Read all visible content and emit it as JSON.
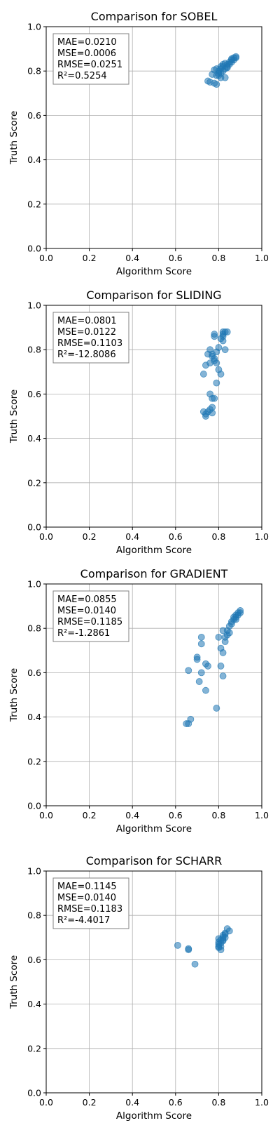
{
  "chart_data": [
    {
      "type": "scatter",
      "title": "Comparison for SOBEL",
      "xlabel": "Algorithm Score",
      "ylabel": "Truth Score",
      "xlim": [
        0,
        1
      ],
      "ylim": [
        0,
        1
      ],
      "xticks": [
        "0.0",
        "0.2",
        "0.4",
        "0.6",
        "0.8",
        "1.0"
      ],
      "yticks": [
        "0.0",
        "0.2",
        "0.4",
        "0.6",
        "0.8",
        "1.0"
      ],
      "grid": true,
      "marker_color": "#1f77b4",
      "stats": [
        "MAE=0.0210",
        "MSE=0.0006",
        "RMSE=0.0251",
        "R²=0.5254"
      ],
      "points": [
        [
          0.75,
          0.755
        ],
        [
          0.76,
          0.75
        ],
        [
          0.77,
          0.785
        ],
        [
          0.78,
          0.745
        ],
        [
          0.79,
          0.74
        ],
        [
          0.78,
          0.805
        ],
        [
          0.79,
          0.81
        ],
        [
          0.8,
          0.78
        ],
        [
          0.8,
          0.8
        ],
        [
          0.81,
          0.79
        ],
        [
          0.81,
          0.82
        ],
        [
          0.81,
          0.77
        ],
        [
          0.82,
          0.8
        ],
        [
          0.82,
          0.82
        ],
        [
          0.83,
          0.81
        ],
        [
          0.83,
          0.77
        ],
        [
          0.84,
          0.82
        ],
        [
          0.84,
          0.83
        ],
        [
          0.85,
          0.83
        ],
        [
          0.85,
          0.84
        ],
        [
          0.86,
          0.84
        ],
        [
          0.86,
          0.85
        ],
        [
          0.87,
          0.85
        ],
        [
          0.87,
          0.86
        ],
        [
          0.88,
          0.86
        ],
        [
          0.88,
          0.865
        ],
        [
          0.82,
          0.83
        ],
        [
          0.81,
          0.81
        ],
        [
          0.8,
          0.79
        ],
        [
          0.84,
          0.815
        ],
        [
          0.79,
          0.78
        ],
        [
          0.83,
          0.835
        ],
        [
          0.86,
          0.855
        ]
      ]
    },
    {
      "type": "scatter",
      "title": "Comparison for SLIDING",
      "xlabel": "Algorithm Score",
      "ylabel": "Truth Score",
      "xlim": [
        0,
        1
      ],
      "ylim": [
        0,
        1
      ],
      "xticks": [
        "0.0",
        "0.2",
        "0.4",
        "0.6",
        "0.8",
        "1.0"
      ],
      "yticks": [
        "0.0",
        "0.2",
        "0.4",
        "0.6",
        "0.8",
        "1.0"
      ],
      "grid": true,
      "marker_color": "#1f77b4",
      "stats": [
        "MAE=0.0801",
        "MSE=0.0122",
        "RMSE=0.1103",
        "R²=-12.8086"
      ],
      "points": [
        [
          0.73,
          0.52
        ],
        [
          0.74,
          0.5
        ],
        [
          0.74,
          0.51
        ],
        [
          0.75,
          0.52
        ],
        [
          0.76,
          0.53
        ],
        [
          0.77,
          0.515
        ],
        [
          0.77,
          0.54
        ],
        [
          0.78,
          0.58
        ],
        [
          0.76,
          0.6
        ],
        [
          0.77,
          0.58
        ],
        [
          0.73,
          0.69
        ],
        [
          0.74,
          0.73
        ],
        [
          0.75,
          0.78
        ],
        [
          0.76,
          0.8
        ],
        [
          0.76,
          0.74
        ],
        [
          0.77,
          0.78
        ],
        [
          0.78,
          0.75
        ],
        [
          0.78,
          0.76
        ],
        [
          0.79,
          0.74
        ],
        [
          0.79,
          0.65
        ],
        [
          0.8,
          0.71
        ],
        [
          0.81,
          0.69
        ],
        [
          0.8,
          0.81
        ],
        [
          0.81,
          0.85
        ],
        [
          0.82,
          0.86
        ],
        [
          0.82,
          0.87
        ],
        [
          0.82,
          0.88
        ],
        [
          0.83,
          0.88
        ],
        [
          0.84,
          0.88
        ],
        [
          0.78,
          0.86
        ],
        [
          0.78,
          0.87
        ],
        [
          0.79,
          0.79
        ],
        [
          0.83,
          0.8
        ],
        [
          0.77,
          0.77
        ],
        [
          0.82,
          0.84
        ]
      ]
    },
    {
      "type": "scatter",
      "title": "Comparison for GRADIENT",
      "xlabel": "Algorithm Score",
      "ylabel": "Truth Score",
      "xlim": [
        0,
        1
      ],
      "ylim": [
        0,
        1
      ],
      "xticks": [
        "0.0",
        "0.2",
        "0.4",
        "0.6",
        "0.8",
        "1.0"
      ],
      "yticks": [
        "0.0",
        "0.2",
        "0.4",
        "0.6",
        "0.8",
        "1.0"
      ],
      "grid": true,
      "marker_color": "#1f77b4",
      "stats": [
        "MAE=0.0855",
        "MSE=0.0140",
        "RMSE=0.1185",
        "R²=-1.2861"
      ],
      "points": [
        [
          0.65,
          0.37
        ],
        [
          0.66,
          0.37
        ],
        [
          0.67,
          0.39
        ],
        [
          0.79,
          0.44
        ],
        [
          0.66,
          0.61
        ],
        [
          0.7,
          0.66
        ],
        [
          0.7,
          0.67
        ],
        [
          0.71,
          0.56
        ],
        [
          0.72,
          0.6
        ],
        [
          0.74,
          0.52
        ],
        [
          0.74,
          0.64
        ],
        [
          0.75,
          0.63
        ],
        [
          0.72,
          0.73
        ],
        [
          0.72,
          0.76
        ],
        [
          0.81,
          0.63
        ],
        [
          0.82,
          0.585
        ],
        [
          0.81,
          0.71
        ],
        [
          0.82,
          0.69
        ],
        [
          0.8,
          0.76
        ],
        [
          0.83,
          0.74
        ],
        [
          0.83,
          0.76
        ],
        [
          0.84,
          0.77
        ],
        [
          0.84,
          0.79
        ],
        [
          0.85,
          0.78
        ],
        [
          0.85,
          0.81
        ],
        [
          0.86,
          0.82
        ],
        [
          0.86,
          0.83
        ],
        [
          0.87,
          0.84
        ],
        [
          0.87,
          0.85
        ],
        [
          0.88,
          0.85
        ],
        [
          0.88,
          0.86
        ],
        [
          0.89,
          0.86
        ],
        [
          0.89,
          0.87
        ],
        [
          0.9,
          0.88
        ],
        [
          0.9,
          0.87
        ],
        [
          0.82,
          0.79
        ],
        [
          0.88,
          0.84
        ]
      ]
    },
    {
      "type": "scatter",
      "title": "Comparison for SCHARR",
      "xlabel": "Algorithm Score",
      "ylabel": "Truth Score",
      "xlim": [
        0,
        1
      ],
      "ylim": [
        0,
        1
      ],
      "xticks": [
        "0.0",
        "0.2",
        "0.4",
        "0.6",
        "0.8",
        "1.0"
      ],
      "yticks": [
        "0.0",
        "0.2",
        "0.4",
        "0.6",
        "0.8",
        "1.0"
      ],
      "grid": true,
      "marker_color": "#1f77b4",
      "stats": [
        "MAE=0.1145",
        "MSE=0.0140",
        "RMSE=0.1183",
        "R²=-4.4017"
      ],
      "points": [
        [
          0.61,
          0.665
        ],
        [
          0.66,
          0.645
        ],
        [
          0.66,
          0.65
        ],
        [
          0.69,
          0.58
        ],
        [
          0.8,
          0.655
        ],
        [
          0.8,
          0.66
        ],
        [
          0.8,
          0.67
        ],
        [
          0.8,
          0.68
        ],
        [
          0.81,
          0.69
        ],
        [
          0.81,
          0.66
        ],
        [
          0.81,
          0.645
        ],
        [
          0.82,
          0.7
        ],
        [
          0.82,
          0.69
        ],
        [
          0.82,
          0.71
        ],
        [
          0.83,
          0.7
        ],
        [
          0.83,
          0.72
        ],
        [
          0.84,
          0.74
        ],
        [
          0.85,
          0.73
        ],
        [
          0.81,
          0.675
        ],
        [
          0.8,
          0.695
        ],
        [
          0.82,
          0.685
        ],
        [
          0.83,
          0.715
        ]
      ]
    }
  ]
}
